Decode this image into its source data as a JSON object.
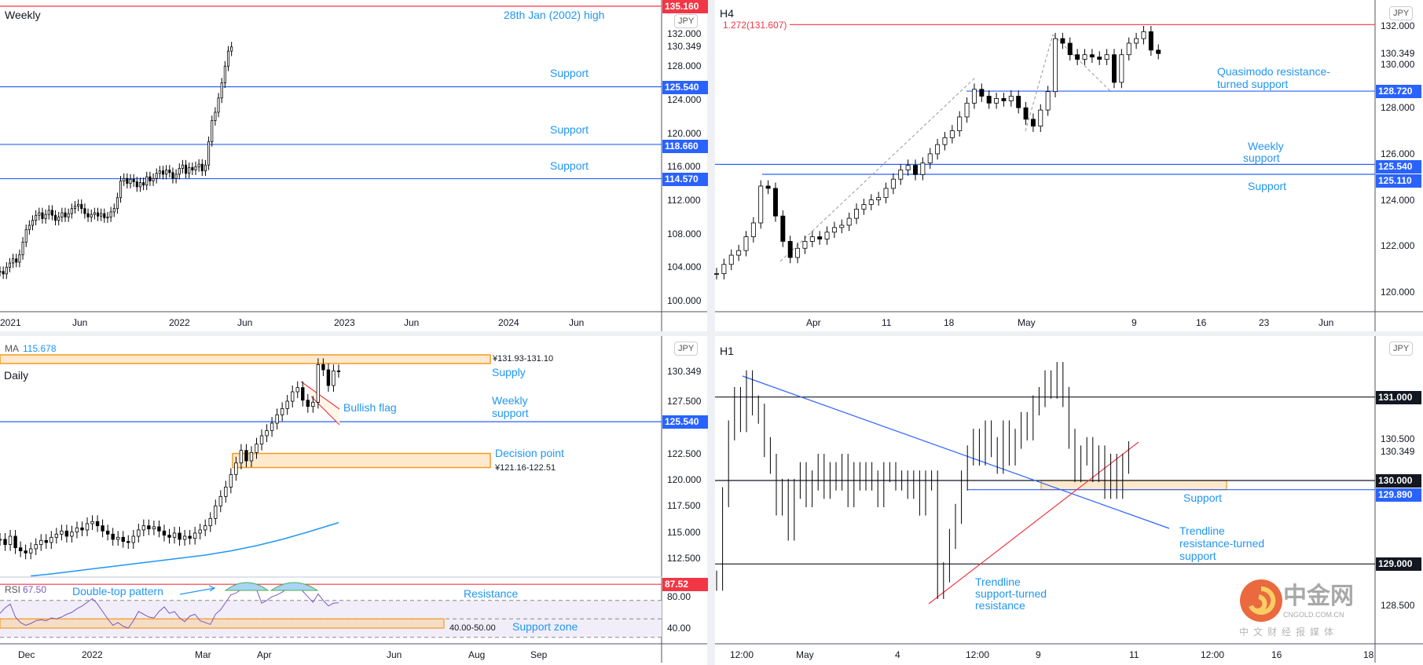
{
  "chart_data": [
    {
      "type": "candlestick",
      "title": "Weekly",
      "currency": "JPY",
      "current_price": "130.349",
      "y_ticks": [
        "132.000",
        "128.000",
        "124.000",
        "120.000",
        "116.000",
        "112.000",
        "108.000",
        "104.000",
        "100.000"
      ],
      "x_ticks": [
        "2021",
        "Jun",
        "2022",
        "Jun",
        "2023",
        "Jun",
        "2024",
        "Jun"
      ],
      "closes": [
        103.5,
        103.2,
        104,
        104.5,
        105,
        104.6,
        105.5,
        107,
        108.5,
        109,
        109.6,
        110.2,
        110.5,
        109.8,
        110.3,
        110.8,
        110.2,
        109.6,
        110,
        110.5,
        110,
        110.4,
        111,
        111.3,
        111.5,
        111,
        110.4,
        110,
        110.3,
        110.5,
        110.1,
        110.4,
        109.9,
        110,
        110.6,
        111,
        112.3,
        114.3,
        114.6,
        114,
        114.5,
        114.2,
        113.6,
        114.1,
        113.8,
        114.8,
        114.3,
        114.6,
        115.2,
        115.5,
        115.1,
        115.6,
        115.3,
        114.6,
        115.1,
        115.8,
        116.2,
        115.2,
        115.9,
        115.6,
        116,
        116.3,
        115.5,
        116.2,
        119,
        121.5,
        122.5,
        124.2,
        126,
        128,
        129.8,
        130.3
      ],
      "levels": [
        {
          "price": 135.16,
          "badge": "135.160",
          "color": "#f23645"
        },
        {
          "price": 125.54,
          "badge": "125.540",
          "color": "#2962ff"
        },
        {
          "price": 118.66,
          "badge": "118.660",
          "color": "#2962ff"
        },
        {
          "price": 114.57,
          "badge": "114.570",
          "color": "#2962ff"
        }
      ],
      "annotations": {
        "high": "28th Jan (2002) high",
        "support1": "Support",
        "support2": "Support",
        "support3": "Support"
      }
    },
    {
      "type": "candlestick",
      "title": "H4",
      "currency": "JPY",
      "current_price": "130.349",
      "y_ticks": [
        "132.000",
        "130.000",
        "128.000",
        "126.000",
        "124.000",
        "122.000",
        "120.000"
      ],
      "x_ticks": [
        "Apr",
        "11",
        "18",
        "May",
        "9",
        "16",
        "23",
        "Jun"
      ],
      "closes": [
        120.8,
        121.2,
        121.6,
        121.8,
        122.4,
        123.0,
        124.6,
        124.5,
        123.3,
        122.2,
        121.5,
        121.9,
        122.2,
        122.4,
        122.3,
        122.6,
        122.8,
        122.9,
        123.2,
        123.6,
        123.8,
        124.0,
        124.1,
        124.5,
        124.9,
        125.3,
        125.5,
        125.1,
        125.6,
        126.0,
        126.4,
        126.7,
        127.0,
        127.6,
        128.2,
        128.8,
        128.5,
        128.2,
        128.4,
        128.3,
        128.5,
        128.0,
        127.5,
        127.2,
        127.9,
        128.7,
        131.0,
        130.8,
        130.3,
        130.1,
        130.3,
        130.2,
        130.1,
        130.3,
        129.1,
        130.3,
        130.8,
        131.0,
        131.3,
        130.5,
        130.35
      ],
      "levels": [
        {
          "price": 131.607,
          "badge": "",
          "color": "#f23645"
        },
        {
          "price": 128.72,
          "badge": "128.720",
          "color": "#2962ff"
        },
        {
          "price": 125.54,
          "badge": "125.540",
          "color": "#2962ff"
        },
        {
          "price": 125.11,
          "badge": "125.110",
          "color": "#2962ff"
        }
      ],
      "annotations": {
        "fib": "1.272(131.607)",
        "qm_line1": "Quasimodo resistance-",
        "qm_line2": "turned support",
        "weekly_line1": "Weekly",
        "weekly_line2": "support",
        "support": "Support"
      }
    },
    {
      "type": "candlestick",
      "title": "Daily",
      "currency": "JPY",
      "current_price": "130.349",
      "ma_label": "MA",
      "ma_value": "115.678",
      "y_ticks": [
        "127.500",
        "122.500",
        "120.000",
        "117.500",
        "115.000",
        "112.500"
      ],
      "x_ticks": [
        "Dec",
        "2022",
        "Mar",
        "Apr",
        "Jun",
        "Aug",
        "Sep"
      ],
      "closes": [
        114.3,
        113.8,
        114.6,
        113.5,
        113.2,
        113,
        113.4,
        113.8,
        114.2,
        114,
        114.5,
        114.8,
        115.1,
        114.6,
        115,
        115.4,
        115.2,
        115.8,
        116,
        115.6,
        115.1,
        114.8,
        114.3,
        114.5,
        114.1,
        114,
        114.6,
        115.2,
        115.6,
        115.3,
        115.5,
        115.1,
        114.7,
        114.5,
        114.9,
        114.3,
        114.6,
        114.4,
        114.9,
        115.2,
        115.6,
        116.3,
        117.5,
        118.4,
        119.3,
        120.5,
        121.6,
        122.8,
        121.8,
        122.6,
        123.4,
        124.2,
        124.7,
        125.4,
        126.2,
        126.8,
        127.5,
        128.4,
        128.8,
        127.6,
        127,
        127.4,
        131,
        130.5,
        129,
        130.4,
        130.35
      ],
      "ma_points": [
        {
          "bar": 6,
          "value": 110.8
        },
        {
          "bar": 10,
          "value": 111.0
        },
        {
          "bar": 15,
          "value": 111.3
        },
        {
          "bar": 20,
          "value": 111.6
        },
        {
          "bar": 25,
          "value": 111.9
        },
        {
          "bar": 30,
          "value": 112.2
        },
        {
          "bar": 35,
          "value": 112.5
        },
        {
          "bar": 40,
          "value": 112.8
        },
        {
          "bar": 45,
          "value": 113.2
        },
        {
          "bar": 50,
          "value": 113.7
        },
        {
          "bar": 55,
          "value": 114.3
        },
        {
          "bar": 60,
          "value": 115.0
        },
        {
          "bar": 66,
          "value": 115.9
        }
      ],
      "zones": [
        {
          "name": "supply",
          "low": 131.1,
          "high": 131.93,
          "label": "¥131.93-131.10"
        },
        {
          "name": "decision",
          "low": 121.16,
          "high": 122.51,
          "label": "¥121.16-122.51"
        }
      ],
      "levels": [
        {
          "price": 125.54,
          "badge": "125.540",
          "color": "#2962ff"
        }
      ],
      "annotations": {
        "supply": "Supply",
        "bullish_flag": "Bullish flag",
        "weekly_line1": "Weekly",
        "weekly_line2": "support",
        "decision": "Decision point"
      },
      "rsi": {
        "label": "RSI",
        "value": "67.50",
        "y_ticks": [
          "80.00",
          "40.00"
        ],
        "values": [
          56,
          62,
          66,
          52,
          46,
          43,
          45,
          48,
          49,
          48,
          51,
          50,
          52,
          55,
          57,
          61,
          64,
          68,
          72,
          66,
          58,
          50,
          43,
          46,
          42,
          40,
          48,
          58,
          55,
          52,
          51,
          58,
          63,
          56,
          58,
          51,
          47,
          53,
          55,
          48,
          46,
          44,
          55,
          60,
          68,
          76,
          78,
          82,
          86,
          87,
          82,
          67,
          70,
          74,
          76,
          79,
          83,
          87,
          88,
          80,
          74,
          68,
          77,
          70,
          64,
          67,
          67.5
        ],
        "bands": [
          70,
          50,
          30
        ],
        "resistance": {
          "value": 87.52,
          "badge": "87.52",
          "color": "#f23645"
        },
        "support_zone": {
          "low": 40,
          "high": 50,
          "label": "40.00-50.00"
        },
        "annotations": {
          "double_top": "Double-top pattern",
          "resistance": "Resistance",
          "support_zone": "Support zone"
        }
      }
    },
    {
      "type": "bar",
      "title": "H1",
      "currency": "JPY",
      "current_price": "130.349",
      "y_ticks": [
        "130.500",
        "128.500"
      ],
      "x_ticks": [
        "12:00",
        "May",
        "4",
        "12:00",
        "9",
        "11",
        "12:00",
        "16",
        "18"
      ],
      "closes": [
        128.8,
        129.8,
        130.6,
        131.0,
        130.7,
        131.2,
        130.9,
        130.8,
        130.4,
        130.2,
        129.7,
        129.9,
        129.4,
        129.9,
        130.1,
        129.8,
        130.0,
        130.2,
        129.9,
        130.1,
        130.0,
        130.2,
        129.8,
        130.1,
        130.0,
        130.1,
        130.0,
        129.8,
        130.1,
        130.1,
        130.0,
        130.0,
        129.9,
        130.0,
        129.7,
        130.0,
        130.0,
        128.7,
        128.9,
        129.3,
        129.6,
        130.0,
        130.3,
        130.5,
        130.3,
        130.6,
        130.4,
        130.2,
        130.6,
        130.3,
        130.5,
        130.7,
        130.6,
        130.9,
        131.0,
        131.2,
        131.1,
        131.3,
        131.0,
        130.5,
        130.1,
        130.3,
        130.4,
        130.1,
        130.3,
        129.9,
        130.2,
        129.9,
        130.2,
        130.35
      ],
      "levels": [
        {
          "price": 131.0,
          "badge": "131.000",
          "color": "#131722"
        },
        {
          "price": 130.0,
          "badge": "130.000",
          "color": "#131722"
        },
        {
          "price": 129.89,
          "badge": "129.890",
          "color": "#2962ff"
        },
        {
          "price": 129.0,
          "badge": "129.000",
          "color": "#131722"
        }
      ],
      "zones": [
        {
          "name": "support",
          "low": 129.89,
          "high": 130.0
        }
      ],
      "annotations": {
        "support": "Support",
        "tl_blue_1": "Trendline",
        "tl_blue_2": "resistance-turned",
        "tl_blue_3": "support",
        "tl_red_1": "Trendline",
        "tl_red_2": "support-turned",
        "tl_red_3": "resistance"
      }
    }
  ],
  "watermark": {
    "brand_cn": "中金网",
    "domain": "CNGOLD.COM.CN",
    "tagline": "中文财经报媒体"
  }
}
